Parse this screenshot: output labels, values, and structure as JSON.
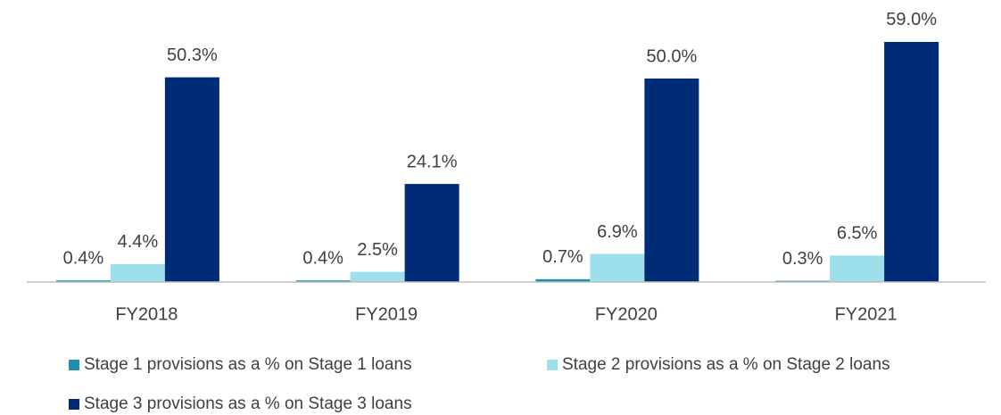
{
  "chart_data": {
    "type": "bar",
    "categories": [
      "FY2018",
      "FY2019",
      "FY2020",
      "FY2021"
    ],
    "series": [
      {
        "name": "Stage 1 provisions as a % on Stage 1 loans",
        "color": "#1e8fb0",
        "values": [
          0.4,
          0.4,
          0.7,
          0.3
        ],
        "value_labels": [
          "0.4%",
          "0.4%",
          "0.7%",
          "0.3%"
        ]
      },
      {
        "name": "Stage 2 provisions as a % on Stage 2 loans",
        "color": "#9ddfea",
        "values": [
          4.4,
          2.5,
          6.9,
          6.5
        ],
        "value_labels": [
          "4.4%",
          "2.5%",
          "6.9%",
          "6.5%"
        ]
      },
      {
        "name": "Stage 3 provisions as a % on Stage 3 loans",
        "color": "#002c77",
        "values": [
          50.3,
          24.1,
          50.0,
          59.0
        ],
        "value_labels": [
          "50.3%",
          "24.1%",
          "50.0%",
          "59.0%"
        ]
      }
    ],
    "ylim": [
      0,
      60
    ],
    "legend": "bottom"
  }
}
